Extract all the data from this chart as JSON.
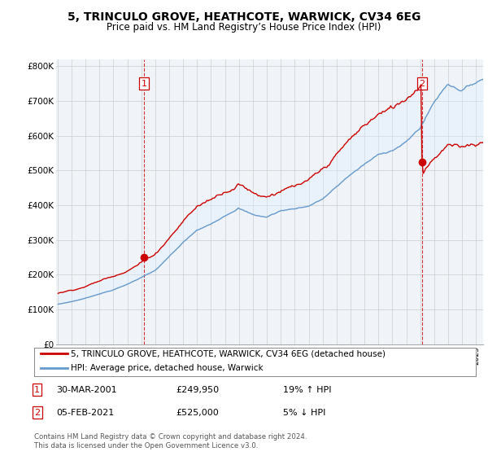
{
  "title": "5, TRINCULO GROVE, HEATHCOTE, WARWICK, CV34 6EG",
  "subtitle": "Price paid vs. HM Land Registry’s House Price Index (HPI)",
  "ylim": [
    0,
    820000
  ],
  "yticks": [
    0,
    100000,
    200000,
    300000,
    400000,
    500000,
    600000,
    700000,
    800000
  ],
  "ytick_labels": [
    "£0",
    "£100K",
    "£200K",
    "£300K",
    "£400K",
    "£500K",
    "£600K",
    "£700K",
    "£800K"
  ],
  "transaction1_year": 2001,
  "transaction1_month": 3,
  "transaction1_price": 249950,
  "transaction1_date": "30-MAR-2001",
  "transaction1_hpi": "19% ↑ HPI",
  "transaction2_year": 2021,
  "transaction2_month": 2,
  "transaction2_price": 525000,
  "transaction2_date": "05-FEB-2021",
  "transaction2_hpi": "5% ↓ HPI",
  "legend_line1": "5, TRINCULO GROVE, HEATHCOTE, WARWICK, CV34 6EG (detached house)",
  "legend_line2": "HPI: Average price, detached house, Warwick",
  "footer1": "Contains HM Land Registry data © Crown copyright and database right 2024.",
  "footer2": "This data is licensed under the Open Government Licence v3.0.",
  "line1_color": "#cc0000",
  "line2_color": "#6699cc",
  "fill_color": "#ddeeff",
  "vline_color": "#cc0000",
  "bg_color": "#f0f4f8",
  "grid_color": "#cccccc"
}
